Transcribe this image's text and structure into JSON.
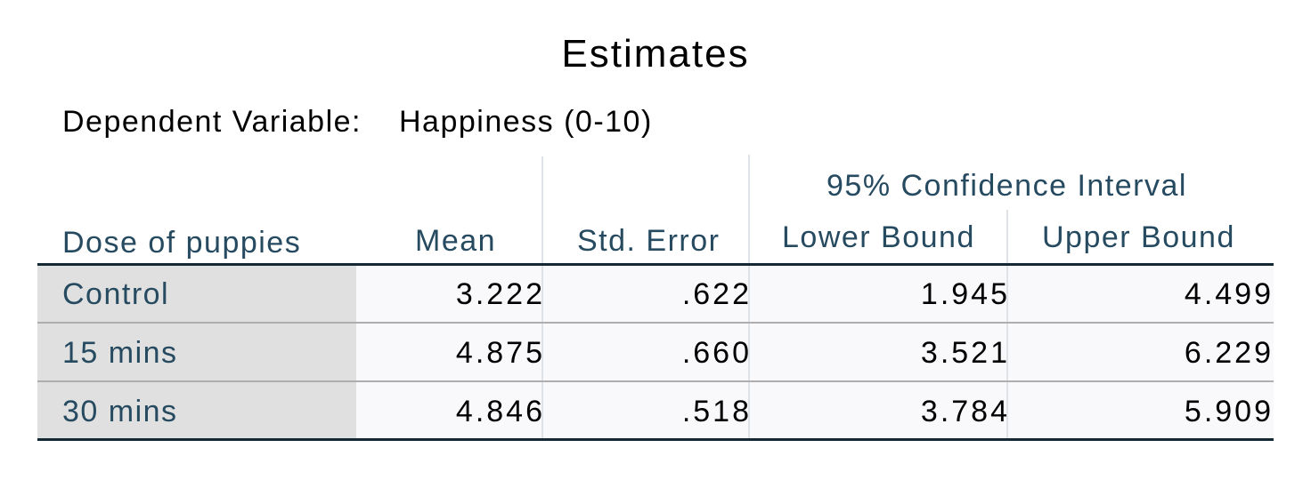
{
  "title": "Estimates",
  "dependent_variable": {
    "label": "Dependent Variable:",
    "value": "Happiness (0-10)"
  },
  "headers": {
    "row_label": "Dose of puppies",
    "mean": "Mean",
    "std_error": "Std. Error",
    "ci_group": "95% Confidence Interval",
    "lower": "Lower Bound",
    "upper": "Upper Bound"
  },
  "rows": [
    {
      "label": "Control",
      "mean": "3.222",
      "std_error": ".622",
      "lower": "1.945",
      "upper": "4.499"
    },
    {
      "label": "15 mins",
      "mean": "4.875",
      "std_error": ".660",
      "lower": "3.521",
      "upper": "6.229"
    },
    {
      "label": "30 mins",
      "mean": "4.846",
      "std_error": ".518",
      "lower": "3.784",
      "upper": "5.909"
    }
  ]
}
